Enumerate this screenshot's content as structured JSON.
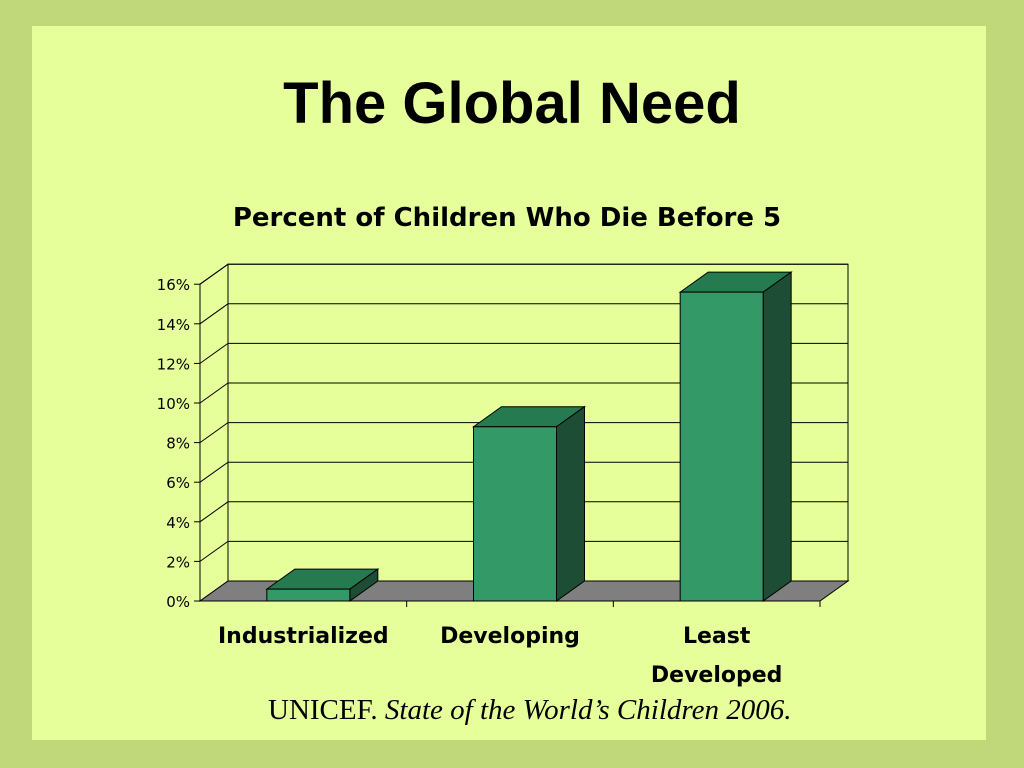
{
  "slide": {
    "title": "The Global Need",
    "citation_org": "UNICEF.",
    "citation_work": "State of the World’s Children 2006."
  },
  "colors": {
    "outer_border": "#c0d87a",
    "slide_background": "#e7ff9b",
    "bar_front": "#339966",
    "bar_top": "#267a4f",
    "bar_side": "#1e4d35",
    "floor": "#7f7f7f"
  },
  "chart_data": {
    "type": "bar",
    "title": "Percent of Children Who Die Before 5",
    "categories": [
      "Industrialized",
      "Developing",
      "Least Developed"
    ],
    "category_lines": [
      [
        "Industrialized"
      ],
      [
        "Developing"
      ],
      [
        "Least",
        "Developed"
      ]
    ],
    "values": [
      0.6,
      8.8,
      15.6
    ],
    "ylim": [
      0,
      16
    ],
    "yticks": [
      0,
      2,
      4,
      6,
      8,
      10,
      12,
      14,
      16
    ],
    "ytick_labels": [
      "0%",
      "2%",
      "4%",
      "6%",
      "8%",
      "10%",
      "12%",
      "14%",
      "16%"
    ],
    "grid": true,
    "style": "3d"
  }
}
